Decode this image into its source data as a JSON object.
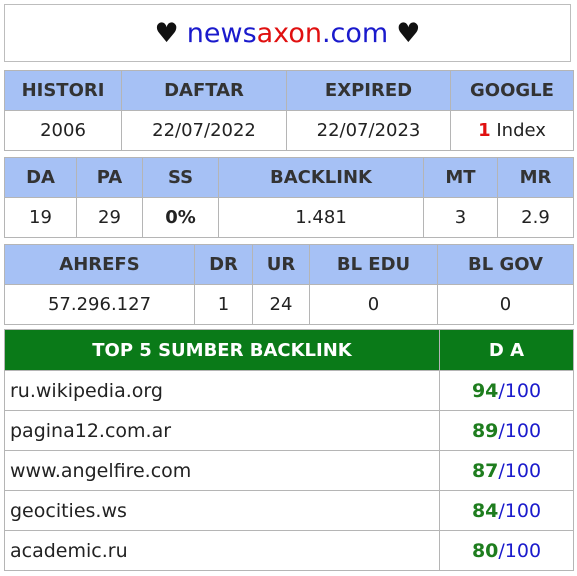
{
  "title": {
    "heart_left": "♥",
    "domain_part1": "news",
    "domain_part2": "axon",
    "domain_part3": ".com",
    "heart_right": "♥"
  },
  "table1": {
    "headers": [
      "HISTORI",
      "DAFTAR",
      "EXPIRED",
      "GOOGLE"
    ],
    "histori": "2006",
    "daftar": "22/07/2022",
    "expired": "22/07/2023",
    "google_count": "1",
    "google_label": " Index"
  },
  "table2": {
    "headers": [
      "DA",
      "PA",
      "SS",
      "BACKLINK",
      "MT",
      "MR"
    ],
    "da": "19",
    "pa": "29",
    "ss": "0%",
    "backlink": "1.481",
    "mt": "3",
    "mr": "2.9"
  },
  "table3": {
    "headers": [
      "AHREFS",
      "DR",
      "UR",
      "BL EDU",
      "BL GOV"
    ],
    "ahrefs": "57.296.127",
    "dr": "1",
    "ur": "24",
    "bl_edu": "0",
    "bl_gov": "0"
  },
  "top_backlinks": {
    "header_source": "TOP 5 SUMBER BACKLINK",
    "header_da": "D A",
    "separator": "/",
    "max": "100",
    "rows": [
      {
        "site": "ru.wikipedia.org",
        "da": "94"
      },
      {
        "site": "pagina12.com.ar",
        "da": "89"
      },
      {
        "site": "www.angelfire.com",
        "da": "87"
      },
      {
        "site": "geocities.ws",
        "da": "84"
      },
      {
        "site": "academic.ru",
        "da": "80"
      }
    ]
  },
  "colors": {
    "header_blue": "#a6c1f5",
    "header_green": "#0a7a18",
    "domain_blue": "#1a1acc",
    "domain_red": "#e01010",
    "ss_green": "#6ccc1a",
    "da_green": "#1e7d1e"
  }
}
